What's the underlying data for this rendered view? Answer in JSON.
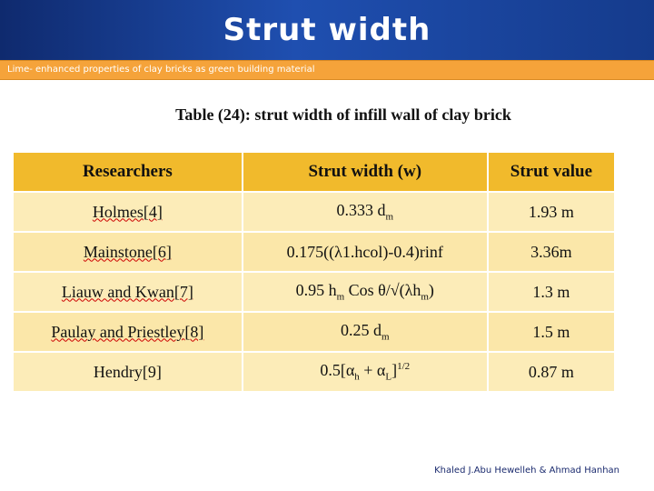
{
  "slide": {
    "title": "Strut width",
    "subtitle": "Lime- enhanced properties of clay bricks as green building material",
    "footer": "Khaled J.Abu Hewelleh & Ahmad Hanhan"
  },
  "table": {
    "caption": "Table (24): strut width of infill wall of clay brick",
    "headers": [
      "Researchers",
      "Strut width (w)",
      "Strut value"
    ],
    "rows": [
      {
        "researcher": "Holmes[4]",
        "width_base": "0.333 d",
        "width_sub": "m",
        "value": "1.93 m"
      },
      {
        "researcher": "Mainstone[6]",
        "width_base": "0.175((λ1.hcol)-0.4)rinf",
        "width_sub": "",
        "value": "3.36m"
      },
      {
        "researcher": "Liauw and Kwan[7]",
        "width_base": "0.95 h",
        "width_sub": "m",
        "width_rest": " Cos θ/√(λh",
        "width_sub2": "m",
        "width_end": ")",
        "value": "1.3 m"
      },
      {
        "researcher": "Paulay and Priestley[8]",
        "width_base": "0.25 d",
        "width_sub": "m",
        "value": "1.5 m"
      },
      {
        "researcher": "Hendry[9]",
        "width_base": "0.5[α",
        "width_sub": "h",
        "width_rest": " + α",
        "width_sub2": "L",
        "width_end": "]",
        "width_sup": "1/2",
        "value": "0.87 m"
      }
    ]
  }
}
